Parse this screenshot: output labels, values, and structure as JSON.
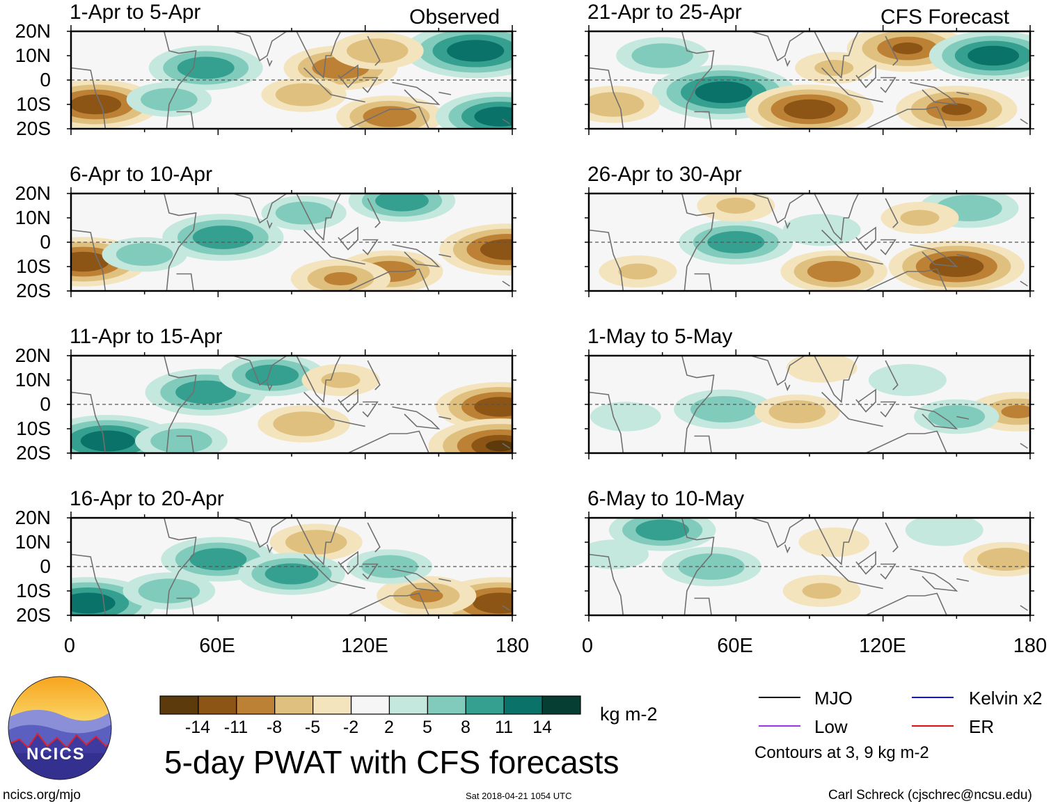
{
  "chart_data": [
    {
      "type": "heatmap",
      "title": "1-Apr to 5-Apr",
      "tag": "Observed",
      "xlim": [
        0,
        180
      ],
      "ylim": [
        -20,
        20
      ],
      "ytick_labels": [
        "20N",
        "10N",
        "0",
        "10S",
        "20S"
      ],
      "pwat_anomaly_features": [
        {
          "lon": 10,
          "lat": -10,
          "value": -12
        },
        {
          "lon": 55,
          "lat": 5,
          "value": 10
        },
        {
          "lon": 110,
          "lat": 5,
          "value": -10
        },
        {
          "lon": 165,
          "lat": 12,
          "value": 14
        },
        {
          "lon": 130,
          "lat": -15,
          "value": -9
        },
        {
          "lon": 175,
          "lat": -15,
          "value": 12
        },
        {
          "lon": 40,
          "lat": -8,
          "value": 6
        },
        {
          "lon": 95,
          "lat": -6,
          "value": -6
        },
        {
          "lon": 125,
          "lat": 12,
          "value": -7
        }
      ]
    },
    {
      "type": "heatmap",
      "title": "6-Apr to 10-Apr",
      "tag": "",
      "xlim": [
        0,
        180
      ],
      "ylim": [
        -20,
        20
      ],
      "ytick_labels": [
        "20N",
        "10N",
        "0",
        "10S",
        "20S"
      ],
      "pwat_anomaly_features": [
        {
          "lon": 5,
          "lat": -8,
          "value": -12
        },
        {
          "lon": 62,
          "lat": 2,
          "value": 11
        },
        {
          "lon": 130,
          "lat": -12,
          "value": -9
        },
        {
          "lon": 178,
          "lat": -3,
          "value": -13
        },
        {
          "lon": 135,
          "lat": 17,
          "value": 9
        },
        {
          "lon": 110,
          "lat": -15,
          "value": -8
        },
        {
          "lon": 30,
          "lat": -5,
          "value": 6
        },
        {
          "lon": 95,
          "lat": 12,
          "value": 6
        }
      ]
    },
    {
      "type": "heatmap",
      "title": "11-Apr to 15-Apr",
      "tag": "",
      "xlim": [
        0,
        180
      ],
      "ylim": [
        -20,
        20
      ],
      "ytick_labels": [
        "20N",
        "10N",
        "0",
        "10S",
        "20S"
      ],
      "pwat_anomaly_features": [
        {
          "lon": 15,
          "lat": -15,
          "value": 13
        },
        {
          "lon": 55,
          "lat": 5,
          "value": 11
        },
        {
          "lon": 175,
          "lat": -1,
          "value": -12
        },
        {
          "lon": 175,
          "lat": -17,
          "value": -14
        },
        {
          "lon": 82,
          "lat": 12,
          "value": 9
        },
        {
          "lon": 95,
          "lat": -8,
          "value": -7
        },
        {
          "lon": 45,
          "lat": -15,
          "value": 7
        },
        {
          "lon": 110,
          "lat": 10,
          "value": -5
        }
      ]
    },
    {
      "type": "heatmap",
      "title": "16-Apr to 20-Apr",
      "tag": "",
      "xlim": [
        0,
        180
      ],
      "ylim": [
        -20,
        20
      ],
      "ytick_labels": [
        "20N",
        "10N",
        "0",
        "10S",
        "20S"
      ],
      "pwat_anomaly_features": [
        {
          "lon": 7,
          "lat": -15,
          "value": 13
        },
        {
          "lon": 60,
          "lat": 3,
          "value": 10
        },
        {
          "lon": 175,
          "lat": -15,
          "value": -13
        },
        {
          "lon": 145,
          "lat": -12,
          "value": -8
        },
        {
          "lon": 100,
          "lat": 10,
          "value": -7
        },
        {
          "lon": 90,
          "lat": -3,
          "value": 9
        },
        {
          "lon": 130,
          "lat": 0,
          "value": 6
        },
        {
          "lon": 40,
          "lat": -10,
          "value": 7
        }
      ]
    },
    {
      "type": "heatmap",
      "title": "21-Apr to 25-Apr",
      "tag": "CFS Forecast",
      "xlim": [
        0,
        180
      ],
      "ylim": [
        -20,
        20
      ],
      "ytick_labels": [
        "20N",
        "10N",
        "0",
        "10S",
        "20S"
      ],
      "pwat_anomaly_features": [
        {
          "lon": 55,
          "lat": -5,
          "value": 14
        },
        {
          "lon": 90,
          "lat": -12,
          "value": -12
        },
        {
          "lon": 130,
          "lat": 13,
          "value": -11
        },
        {
          "lon": 165,
          "lat": 10,
          "value": 12
        },
        {
          "lon": 150,
          "lat": -12,
          "value": -11
        },
        {
          "lon": 30,
          "lat": 10,
          "value": 7
        },
        {
          "lon": 10,
          "lat": -10,
          "value": -7
        },
        {
          "lon": 100,
          "lat": 5,
          "value": -5
        }
      ]
    },
    {
      "type": "heatmap",
      "title": "26-Apr to 30-Apr",
      "tag": "",
      "xlim": [
        0,
        180
      ],
      "ylim": [
        -20,
        20
      ],
      "ytick_labels": [
        "20N",
        "10N",
        "0",
        "10S",
        "20S"
      ],
      "pwat_anomaly_features": [
        {
          "lon": 60,
          "lat": 0,
          "value": 10
        },
        {
          "lon": 100,
          "lat": -12,
          "value": -9
        },
        {
          "lon": 150,
          "lat": -10,
          "value": -13
        },
        {
          "lon": 155,
          "lat": 14,
          "value": 8
        },
        {
          "lon": 135,
          "lat": 10,
          "value": -5
        },
        {
          "lon": 60,
          "lat": 15,
          "value": -5
        },
        {
          "lon": 20,
          "lat": -12,
          "value": -5
        },
        {
          "lon": 95,
          "lat": 5,
          "value": 5
        }
      ]
    },
    {
      "type": "heatmap",
      "title": "1-May to 5-May",
      "tag": "",
      "xlim": [
        0,
        180
      ],
      "ylim": [
        -20,
        20
      ],
      "ytick_labels": [
        "20N",
        "10N",
        "0",
        "10S",
        "20S"
      ],
      "pwat_anomaly_features": [
        {
          "lon": 55,
          "lat": -2,
          "value": 8
        },
        {
          "lon": 85,
          "lat": -3,
          "value": -6
        },
        {
          "lon": 175,
          "lat": -3,
          "value": -8
        },
        {
          "lon": 150,
          "lat": -5,
          "value": 6
        },
        {
          "lon": 95,
          "lat": 15,
          "value": -4
        },
        {
          "lon": 130,
          "lat": 10,
          "value": 5
        },
        {
          "lon": 15,
          "lat": -5,
          "value": 4
        }
      ]
    },
    {
      "type": "heatmap",
      "title": "6-May to 10-May",
      "tag": "",
      "xlim": [
        0,
        180
      ],
      "ylim": [
        -20,
        20
      ],
      "ytick_labels": [
        "20N",
        "10N",
        "0",
        "10S",
        "20S"
      ],
      "pwat_anomaly_features": [
        {
          "lon": 50,
          "lat": 0,
          "value": 8
        },
        {
          "lon": 30,
          "lat": 15,
          "value": 9
        },
        {
          "lon": 170,
          "lat": 3,
          "value": -6
        },
        {
          "lon": 95,
          "lat": -10,
          "value": -5
        },
        {
          "lon": 145,
          "lat": 15,
          "value": 5
        },
        {
          "lon": 100,
          "lat": 10,
          "value": -4
        },
        {
          "lon": 10,
          "lat": 5,
          "value": 4
        }
      ]
    }
  ],
  "axes": {
    "xtick_labels": [
      "0",
      "60E",
      "120E",
      "180"
    ],
    "xtick_values": [
      0,
      60,
      120,
      180
    ]
  },
  "colorbar": {
    "colors": [
      "#5c3a0c",
      "#8c5515",
      "#bd8136",
      "#e0c07e",
      "#f3e4bd",
      "#f6f6f6",
      "#c4e7de",
      "#80cbbb",
      "#35a090",
      "#0a7268",
      "#073e34"
    ],
    "tick_labels": [
      "-14",
      "-11",
      "-8",
      "-5",
      "-2",
      "2",
      "5",
      "8",
      "11",
      "14"
    ],
    "unit": "kg m-2"
  },
  "legend": {
    "items": [
      {
        "label": "MJO",
        "color": "#000000"
      },
      {
        "label": "Kelvin x2",
        "color": "#1111dd"
      },
      {
        "label": "Low",
        "color": "#9933ee"
      },
      {
        "label": "ER",
        "color": "#dd1111"
      }
    ],
    "note": "Contours at 3, 9 kg m-2"
  },
  "main_title": "5-day PWAT with CFS forecasts",
  "logo": {
    "text": "NCICS"
  },
  "footer": {
    "left": "ncics.org/mjo",
    "center": "Sat 2018-04-21 1054 UTC",
    "right": "Carl Schreck (cjschrec@ncsu.edu)"
  }
}
